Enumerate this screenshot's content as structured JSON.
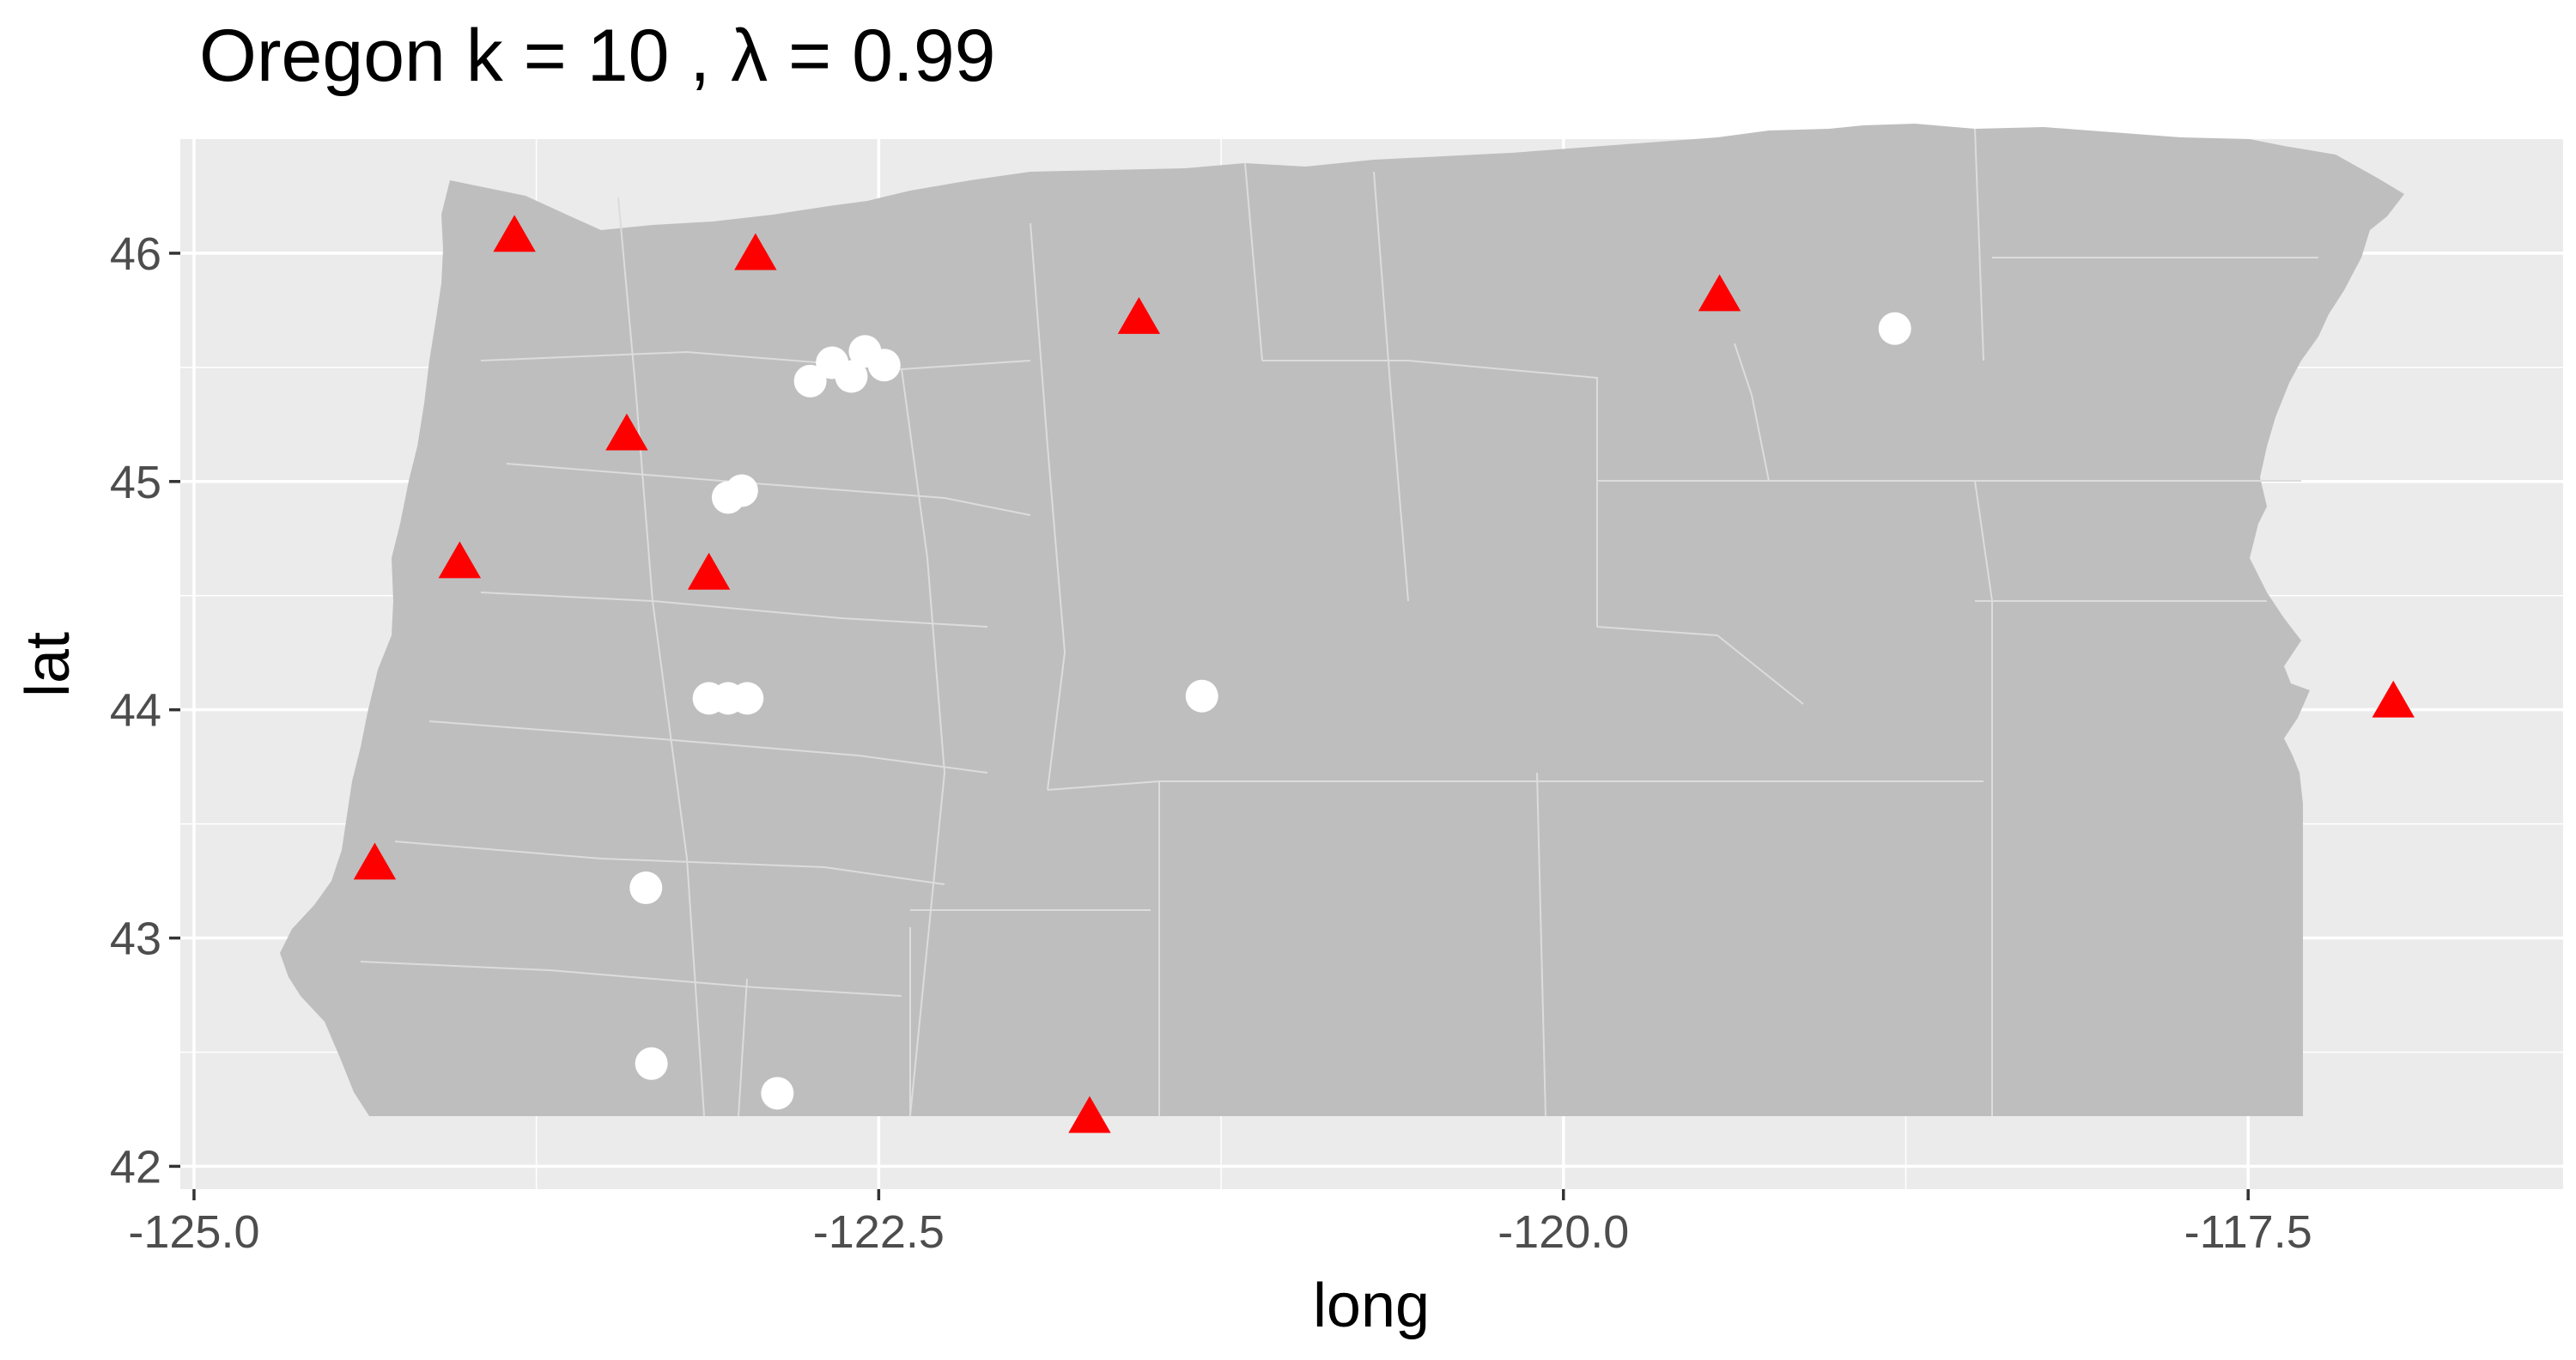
{
  "chart_data": {
    "type": "scatter",
    "title": "Oregon  k =  10 ,  λ  =  0.99",
    "xlabel": "long",
    "ylabel": "lat",
    "xlim": [
      -125.05,
      -116.35
    ],
    "ylim": [
      41.9,
      46.5
    ],
    "x_ticks": [
      {
        "value": -125.0,
        "label": "-125.0"
      },
      {
        "value": -122.5,
        "label": "-122.5"
      },
      {
        "value": -120.0,
        "label": "-120.0"
      },
      {
        "value": -117.5,
        "label": "-117.5"
      }
    ],
    "y_ticks": [
      {
        "value": 42,
        "label": "42"
      },
      {
        "value": 43,
        "label": "43"
      },
      {
        "value": 44,
        "label": "44"
      },
      {
        "value": 45,
        "label": "45"
      },
      {
        "value": 46,
        "label": "46"
      }
    ],
    "grid": true,
    "legend": "none",
    "colors": {
      "panel_background": "#ebebeb",
      "grid_line": "#ffffff",
      "map_fill": "#bebebe",
      "map_border": "#dcdcdc",
      "triangle_marker": "#ff0000",
      "circle_marker": "#ffffff"
    },
    "series": [
      {
        "marker": "triangle",
        "color": "#ff0000",
        "points": [
          {
            "x": -123.83,
            "y": 46.07
          },
          {
            "x": -122.95,
            "y": 45.99
          },
          {
            "x": -121.55,
            "y": 45.71
          },
          {
            "x": -119.43,
            "y": 45.81
          },
          {
            "x": -123.42,
            "y": 45.2
          },
          {
            "x": -124.03,
            "y": 44.64
          },
          {
            "x": -123.12,
            "y": 44.59
          },
          {
            "x": -124.34,
            "y": 43.32
          },
          {
            "x": -121.73,
            "y": 42.21
          },
          {
            "x": -116.97,
            "y": 44.03
          }
        ]
      },
      {
        "marker": "circle",
        "color": "#ffffff",
        "points": [
          {
            "x": -122.75,
            "y": 45.44
          },
          {
            "x": -122.67,
            "y": 45.52
          },
          {
            "x": -122.6,
            "y": 45.46
          },
          {
            "x": -122.55,
            "y": 45.57
          },
          {
            "x": -122.48,
            "y": 45.51
          },
          {
            "x": -123.05,
            "y": 44.93
          },
          {
            "x": -123.0,
            "y": 44.96
          },
          {
            "x": -123.12,
            "y": 44.05
          },
          {
            "x": -123.05,
            "y": 44.05
          },
          {
            "x": -122.98,
            "y": 44.05
          },
          {
            "x": -121.32,
            "y": 44.06
          },
          {
            "x": -118.79,
            "y": 45.67
          },
          {
            "x": -123.35,
            "y": 43.22
          },
          {
            "x": -123.33,
            "y": 42.45
          },
          {
            "x": -122.87,
            "y": 42.32
          }
        ]
      }
    ]
  }
}
